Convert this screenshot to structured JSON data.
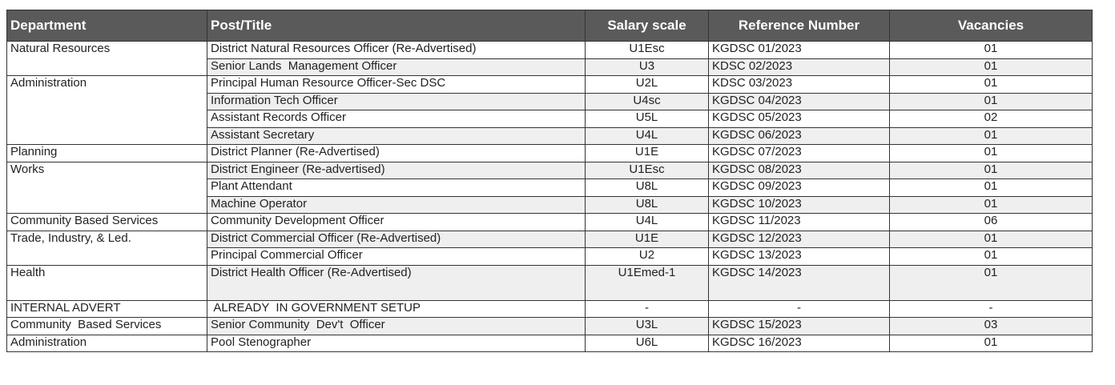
{
  "table": {
    "header": [
      "Department",
      "Post/Title",
      "Salary scale",
      "Reference Number",
      "Vacancies"
    ],
    "groups": [
      {
        "department": "Natural Resources",
        "rows": [
          [
            "District Natural Resources Officer (Re-Advertised)",
            "U1Esc",
            "KGDSC 01/2023",
            "01"
          ],
          [
            "Senior Lands  Management Officer",
            "U3",
            "KDSC 02/2023",
            "01"
          ]
        ]
      },
      {
        "department": "Administration",
        "rows": [
          [
            "Principal Human Resource Officer-Sec DSC",
            "U2L",
            "KDSC 03/2023",
            "01"
          ],
          [
            "Information Tech Officer",
            "U4sc",
            "KGDSC 04/2023",
            "01"
          ],
          [
            "Assistant Records Officer",
            "U5L",
            "KGDSC 05/2023",
            "02"
          ],
          [
            "Assistant Secretary",
            "U4L",
            "KGDSC 06/2023",
            "01"
          ]
        ]
      },
      {
        "department": "Planning",
        "rows": [
          [
            "District Planner (Re-Advertised)",
            "U1E",
            "KGDSC 07/2023",
            "01"
          ]
        ]
      },
      {
        "department": "Works",
        "rows": [
          [
            "District Engineer (Re-advertised)",
            "U1Esc",
            "KGDSC 08/2023",
            "01"
          ],
          [
            "Plant Attendant",
            "U8L",
            "KGDSC 09/2023",
            "01"
          ],
          [
            "Machine Operator",
            "U8L",
            "KGDSC 10/2023",
            "01"
          ]
        ]
      },
      {
        "department": "Community Based Services",
        "rows": [
          [
            "Community Development Officer",
            "U4L",
            "KGDSC 11/2023",
            "06"
          ]
        ]
      },
      {
        "department": "Trade, Industry, & Led.",
        "rows": [
          [
            "District Commercial Officer (Re-Advertised)",
            "U1E",
            "KGDSC 12/2023",
            "01"
          ],
          [
            "Principal Commercial Officer",
            "U2",
            "KGDSC 13/2023",
            "01"
          ]
        ]
      },
      {
        "department": "Health",
        "rows": [
          [
            "District Health Officer (Re-Advertised)",
            "U1Emed-1",
            "KGDSC 14/2023",
            "01"
          ]
        ]
      },
      {
        "department": "INTERNAL ADVERT",
        "rows": [
          [
            " ALREADY  IN GOVERNMENT SETUP",
            "-",
            "-",
            "-"
          ]
        ]
      },
      {
        "department": "Community  Based Services",
        "rows": [
          [
            "Senior Community  Dev't  Officer",
            "U3L",
            "KGDSC 15/2023",
            "03"
          ]
        ]
      },
      {
        "department": "Administration",
        "rows": [
          [
            "Pool Stenographer",
            "U6L",
            "KGDSC 16/2023",
            "01"
          ]
        ]
      }
    ]
  }
}
